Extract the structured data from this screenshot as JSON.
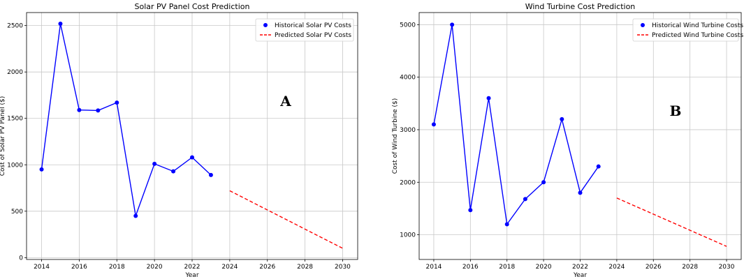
{
  "chart_data": [
    {
      "type": "line",
      "title": "Solar PV Panel Cost Prediction",
      "xlabel": "Year",
      "ylabel": "Cost of Solar PV Panel ($)",
      "panel_label": "A",
      "xlim": [
        2013.2,
        2030.8
      ],
      "ylim": [
        -20,
        2640
      ],
      "xticks": [
        "2014",
        "2016",
        "2018",
        "2020",
        "2022",
        "2024",
        "2026",
        "2028",
        "2030"
      ],
      "yticks": [
        "0",
        "500",
        "1000",
        "1500",
        "2000",
        "2500"
      ],
      "grid": true,
      "legend_position": "top-right",
      "series": [
        {
          "name": "Historical Solar PV Costs",
          "style": "line-markers",
          "color": "#0000ff",
          "x": [
            2014,
            2015,
            2016,
            2017,
            2018,
            2019,
            2020,
            2021,
            2022,
            2023
          ],
          "y": [
            950,
            2520,
            1590,
            1585,
            1670,
            450,
            1010,
            930,
            1080,
            890
          ]
        },
        {
          "name": "Predicted Solar PV Costs",
          "style": "dashed",
          "color": "#ff0000",
          "x": [
            2024,
            2030
          ],
          "y": [
            720,
            100
          ]
        }
      ]
    },
    {
      "type": "line",
      "title": "Wind Turbine Cost Prediction",
      "xlabel": "Year",
      "ylabel": "Cost of Wind Turbine ($)",
      "panel_label": "B",
      "xlim": [
        2013.2,
        2030.8
      ],
      "ylim": [
        530,
        5230
      ],
      "xticks": [
        "2014",
        "2016",
        "2018",
        "2020",
        "2022",
        "2024",
        "2026",
        "2028",
        "2030"
      ],
      "yticks": [
        "1000",
        "2000",
        "3000",
        "4000",
        "5000"
      ],
      "grid": true,
      "legend_position": "top-right",
      "series": [
        {
          "name": "Historical Wind Turbine Costs",
          "style": "line-markers",
          "color": "#0000ff",
          "x": [
            2014,
            2015,
            2016,
            2017,
            2018,
            2019,
            2020,
            2021,
            2022,
            2023
          ],
          "y": [
            3100,
            5000,
            1470,
            3600,
            1200,
            1680,
            2000,
            3200,
            1800,
            2300
          ]
        },
        {
          "name": "Predicted Wind Turbine Costs",
          "style": "dashed",
          "color": "#ff0000",
          "x": [
            2024,
            2030
          ],
          "y": [
            1700,
            780
          ]
        }
      ]
    }
  ]
}
